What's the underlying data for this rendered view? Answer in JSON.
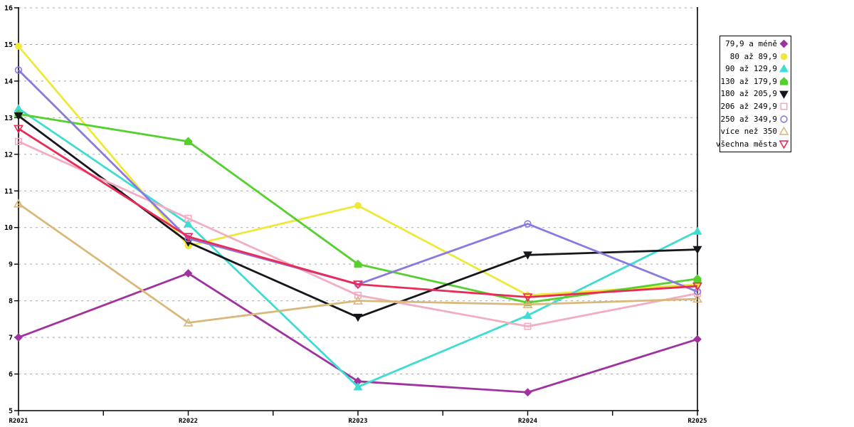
{
  "chart_data": {
    "type": "line",
    "title": "",
    "xlabel": "",
    "ylabel": "",
    "categories": [
      "R2021",
      "R2022",
      "R2023",
      "R2024",
      "R2025"
    ],
    "series": [
      {
        "name": "79,9 a méně",
        "color": "#A032A0",
        "marker": "diamond",
        "fill": "solid",
        "values": [
          7.0,
          8.75,
          5.8,
          5.5,
          6.95
        ]
      },
      {
        "name": "80 až 89,9",
        "color": "#EEE83A",
        "marker": "circle",
        "fill": "solid",
        "values": [
          14.95,
          9.5,
          10.6,
          8.15,
          8.45
        ]
      },
      {
        "name": "90 až 129,9",
        "color": "#3EDCD2",
        "marker": "triangle-up",
        "fill": "solid",
        "values": [
          13.25,
          10.1,
          5.65,
          7.6,
          9.9
        ]
      },
      {
        "name": "130 až 179,9",
        "color": "#55D02E",
        "marker": "pentagon",
        "fill": "solid",
        "values": [
          13.1,
          12.35,
          9.0,
          7.95,
          8.6
        ]
      },
      {
        "name": "180 až 205,9",
        "color": "#16161D",
        "marker": "triangle-down",
        "fill": "solid",
        "values": [
          13.05,
          9.6,
          7.55,
          9.25,
          9.4
        ]
      },
      {
        "name": "206 až 249,9",
        "color": "#F2ADC2",
        "marker": "square",
        "fill": "open",
        "values": [
          12.35,
          10.25,
          8.15,
          7.3,
          8.2
        ]
      },
      {
        "name": "250 až 349,9",
        "color": "#8A7AE0",
        "marker": "circle",
        "fill": "open",
        "values": [
          14.3,
          9.7,
          8.45,
          10.1,
          8.25
        ]
      },
      {
        "name": "více než 350",
        "color": "#D9B87C",
        "marker": "triangle-up",
        "fill": "open",
        "values": [
          10.65,
          7.4,
          8.0,
          7.9,
          8.05
        ]
      },
      {
        "name": "všechna města",
        "color": "#E92B57",
        "marker": "triangle-down",
        "fill": "open",
        "values": [
          12.7,
          9.75,
          8.45,
          8.1,
          8.4
        ]
      }
    ],
    "ylim": [
      5,
      16
    ],
    "ytick_step": 1,
    "ytick_labels": [
      "5",
      "6",
      "7",
      "8",
      "9",
      "10",
      "11",
      "12",
      "13",
      "14",
      "15",
      "16"
    ],
    "x_minor_ticks_between_categories": true,
    "grid": "horizontal-dashed",
    "grid_color": "#A8A8A8",
    "axis_color": "#000000",
    "legend_position": "outside-top-right"
  }
}
